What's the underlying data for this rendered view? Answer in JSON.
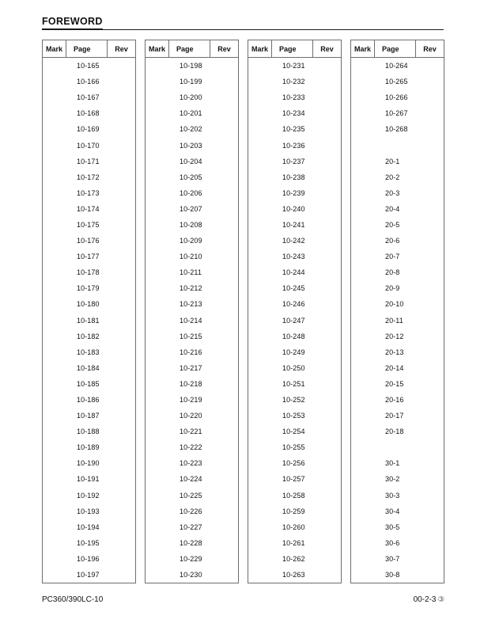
{
  "page": {
    "title": "FOREWORD"
  },
  "table_headers": [
    "Mark",
    "Page",
    "Rev"
  ],
  "tables": [
    {
      "rows": [
        "10-165",
        "10-166",
        "10-167",
        "10-168",
        "10-169",
        "10-170",
        "10-171",
        "10-172",
        "10-173",
        "10-174",
        "10-175",
        "10-176",
        "10-177",
        "10-178",
        "10-179",
        "10-180",
        "10-181",
        "10-182",
        "10-183",
        "10-184",
        "10-185",
        "10-186",
        "10-187",
        "10-188",
        "10-189",
        "10-190",
        "10-191",
        "10-192",
        "10-193",
        "10-194",
        "10-195",
        "10-196",
        "10-197"
      ]
    },
    {
      "rows": [
        "10-198",
        "10-199",
        "10-200",
        "10-201",
        "10-202",
        "10-203",
        "10-204",
        "10-205",
        "10-206",
        "10-207",
        "10-208",
        "10-209",
        "10-210",
        "10-211",
        "10-212",
        "10-213",
        "10-214",
        "10-215",
        "10-216",
        "10-217",
        "10-218",
        "10-219",
        "10-220",
        "10-221",
        "10-222",
        "10-223",
        "10-224",
        "10-225",
        "10-226",
        "10-227",
        "10-228",
        "10-229",
        "10-230"
      ]
    },
    {
      "rows": [
        "10-231",
        "10-232",
        "10-233",
        "10-234",
        "10-235",
        "10-236",
        "10-237",
        "10-238",
        "10-239",
        "10-240",
        "10-241",
        "10-242",
        "10-243",
        "10-244",
        "10-245",
        "10-246",
        "10-247",
        "10-248",
        "10-249",
        "10-250",
        "10-251",
        "10-252",
        "10-253",
        "10-254",
        "10-255",
        "10-256",
        "10-257",
        "10-258",
        "10-259",
        "10-260",
        "10-261",
        "10-262",
        "10-263"
      ]
    },
    {
      "rows": [
        "10-264",
        "10-265",
        "10-266",
        "10-267",
        "10-268",
        "",
        "20-1",
        "20-2",
        "20-3",
        "20-4",
        "20-5",
        "20-6",
        "20-7",
        "20-8",
        "20-9",
        "20-10",
        "20-11",
        "20-12",
        "20-13",
        "20-14",
        "20-15",
        "20-16",
        "20-17",
        "20-18",
        "",
        "30-1",
        "30-2",
        "30-3",
        "30-4",
        "30-5",
        "30-6",
        "30-7",
        "30-8"
      ]
    }
  ],
  "footer": {
    "model": "PC360/390LC-10",
    "page_number": "00-2-3",
    "revision_symbol": "③"
  }
}
